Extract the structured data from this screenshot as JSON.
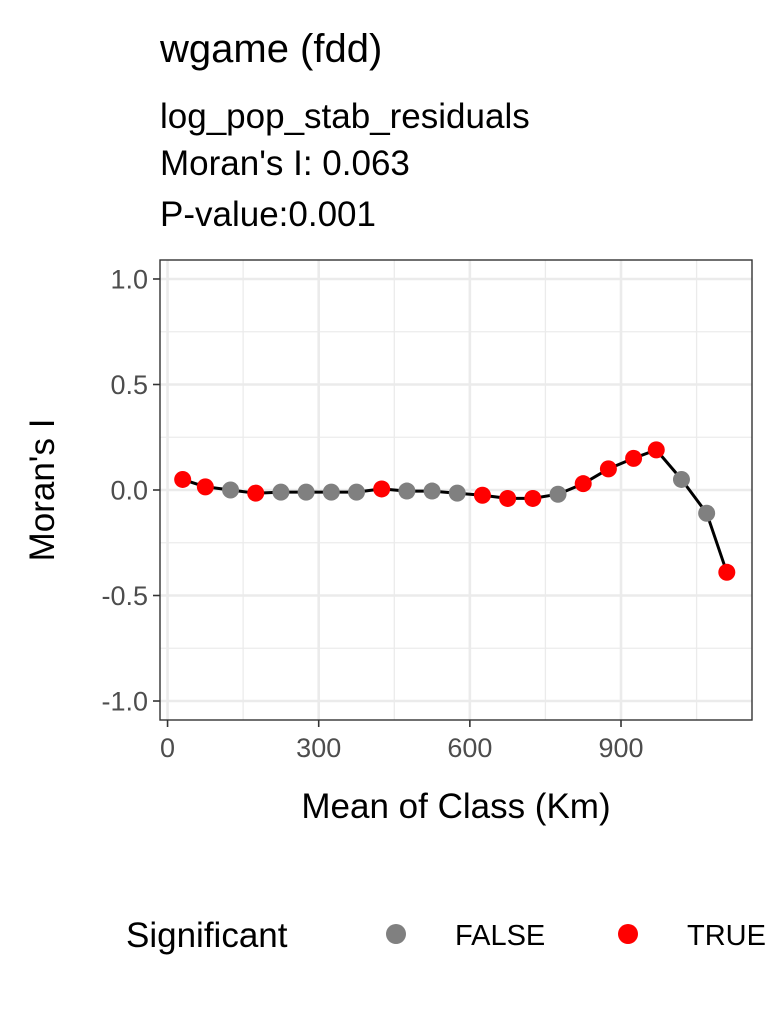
{
  "chart_data": {
    "type": "line",
    "title": "wgame (fdd)",
    "subtitle_lines": [
      "log_pop_stab_residuals",
      "Moran's I: 0.063",
      "P-value:0.001"
    ],
    "xlabel": "Mean of Class (Km)",
    "ylabel": "Moran's I",
    "xlim": [
      -15,
      1160
    ],
    "ylim": [
      -1.09,
      1.09
    ],
    "x_ticks": [
      0,
      300,
      600,
      900
    ],
    "x_tick_labels": [
      "0",
      "300",
      "600",
      "900"
    ],
    "y_ticks": [
      -1.0,
      -0.5,
      0.0,
      0.5,
      1.0
    ],
    "y_tick_labels": [
      "-1.0",
      "-0.5",
      "0.0",
      "0.5",
      "1.0"
    ],
    "grid": true,
    "legend": {
      "title": "Significant",
      "position": "bottom",
      "entries": [
        {
          "label": "FALSE",
          "color": "#808080"
        },
        {
          "label": "TRUE",
          "color": "#ff0000"
        }
      ]
    },
    "line_color": "#000000",
    "points": [
      {
        "x": 30,
        "y": 0.05,
        "significant": true
      },
      {
        "x": 75,
        "y": 0.015,
        "significant": true
      },
      {
        "x": 125,
        "y": 0.0,
        "significant": false
      },
      {
        "x": 175,
        "y": -0.015,
        "significant": true
      },
      {
        "x": 225,
        "y": -0.01,
        "significant": false
      },
      {
        "x": 275,
        "y": -0.01,
        "significant": false
      },
      {
        "x": 325,
        "y": -0.01,
        "significant": false
      },
      {
        "x": 375,
        "y": -0.01,
        "significant": false
      },
      {
        "x": 425,
        "y": 0.005,
        "significant": true
      },
      {
        "x": 475,
        "y": -0.005,
        "significant": false
      },
      {
        "x": 525,
        "y": -0.005,
        "significant": false
      },
      {
        "x": 575,
        "y": -0.015,
        "significant": false
      },
      {
        "x": 625,
        "y": -0.025,
        "significant": true
      },
      {
        "x": 675,
        "y": -0.04,
        "significant": true
      },
      {
        "x": 725,
        "y": -0.04,
        "significant": true
      },
      {
        "x": 775,
        "y": -0.02,
        "significant": false
      },
      {
        "x": 825,
        "y": 0.03,
        "significant": true
      },
      {
        "x": 875,
        "y": 0.1,
        "significant": true
      },
      {
        "x": 925,
        "y": 0.15,
        "significant": true
      },
      {
        "x": 970,
        "y": 0.19,
        "significant": true
      },
      {
        "x": 1020,
        "y": 0.05,
        "significant": false
      },
      {
        "x": 1070,
        "y": -0.11,
        "significant": false
      },
      {
        "x": 1110,
        "y": -0.39,
        "significant": true
      }
    ]
  }
}
